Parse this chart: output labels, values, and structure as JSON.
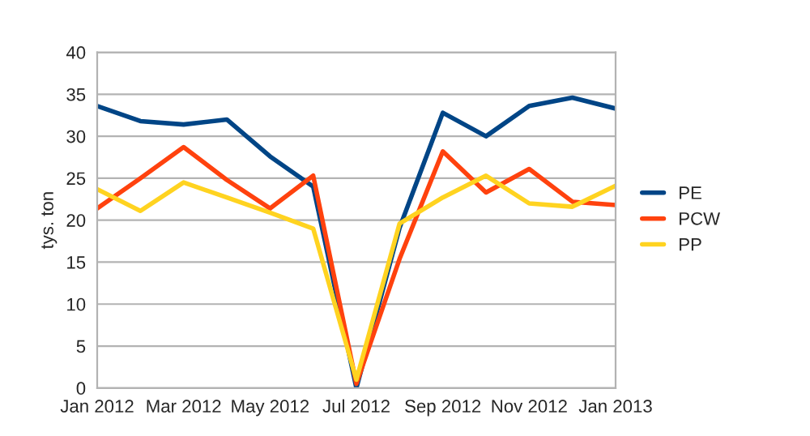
{
  "chart_data": {
    "type": "line",
    "ylabel": "tys. ton",
    "categories": [
      "Jan 2012",
      null,
      "Mar 2012",
      null,
      "May 2012",
      null,
      "Jul 2012",
      null,
      "Sep 2012",
      null,
      "Nov 2012",
      null,
      "Jan 2013"
    ],
    "series": [
      {
        "name": "PE",
        "color": "#004586",
        "values": [
          33.6,
          31.8,
          31.4,
          32.0,
          27.6,
          24.0,
          0,
          19.1,
          32.8,
          30.0,
          33.6,
          34.6,
          33.3
        ]
      },
      {
        "name": "PCW",
        "color": "#ff420e",
        "values": [
          21.4,
          25.0,
          28.7,
          24.8,
          21.4,
          25.3,
          0.5,
          15.4,
          28.2,
          23.3,
          26.1,
          22.2,
          21.8
        ]
      },
      {
        "name": "PP",
        "color": "#ffd320",
        "values": [
          23.7,
          21.1,
          24.5,
          22.7,
          20.9,
          19.0,
          1.0,
          19.6,
          22.7,
          25.3,
          22.0,
          21.6,
          24.1
        ]
      }
    ],
    "ylim": [
      0,
      40
    ],
    "yticks": [
      0,
      5,
      10,
      15,
      20,
      25,
      30,
      35,
      40
    ],
    "grid": "y",
    "legend": "right",
    "marker": "none",
    "line_style": "solid"
  }
}
